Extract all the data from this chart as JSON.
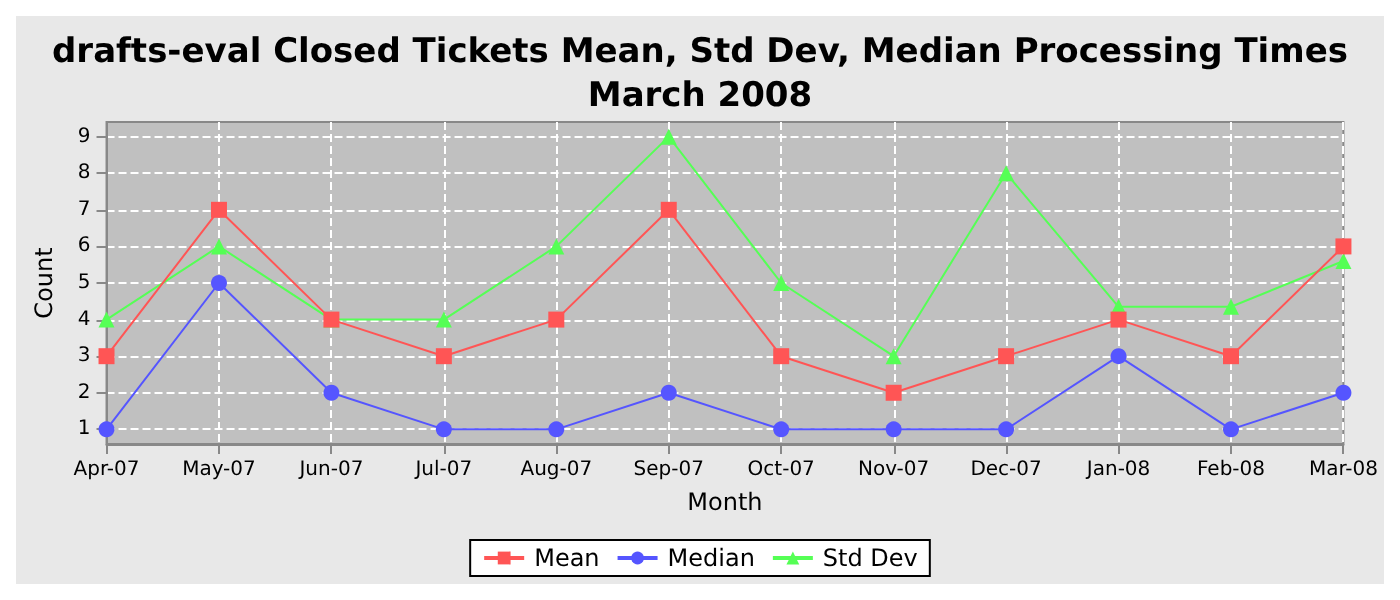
{
  "chart_data": {
    "type": "line",
    "title": "drafts-eval Closed Tickets Mean, Std Dev, Median Processing Times\nMarch 2008",
    "xlabel": "Month",
    "ylabel": "Count",
    "categories": [
      "Apr-07",
      "May-07",
      "Jun-07",
      "Jul-07",
      "Aug-07",
      "Sep-07",
      "Oct-07",
      "Nov-07",
      "Dec-07",
      "Jan-08",
      "Feb-08",
      "Mar-08"
    ],
    "series": [
      {
        "name": "Mean",
        "color": "#ff5555",
        "marker": "square",
        "values": [
          3,
          7,
          4,
          3,
          4,
          7,
          3,
          2,
          3,
          4,
          3,
          6
        ]
      },
      {
        "name": "Median",
        "color": "#5555ff",
        "marker": "circle",
        "values": [
          1,
          5,
          2,
          1,
          1,
          2,
          1,
          1,
          1,
          3,
          1,
          2
        ]
      },
      {
        "name": "Std Dev",
        "color": "#55ff55",
        "marker": "triangle",
        "values": [
          4,
          6,
          4,
          4,
          6,
          9,
          5,
          3,
          8,
          4.35,
          4.35,
          5.6
        ]
      }
    ],
    "ylim": [
      0.6,
      9.4
    ],
    "yticks": [
      1,
      2,
      3,
      4,
      5,
      6,
      7,
      8,
      9
    ],
    "grid": true,
    "legend": "bottom",
    "line_style": "solid"
  }
}
